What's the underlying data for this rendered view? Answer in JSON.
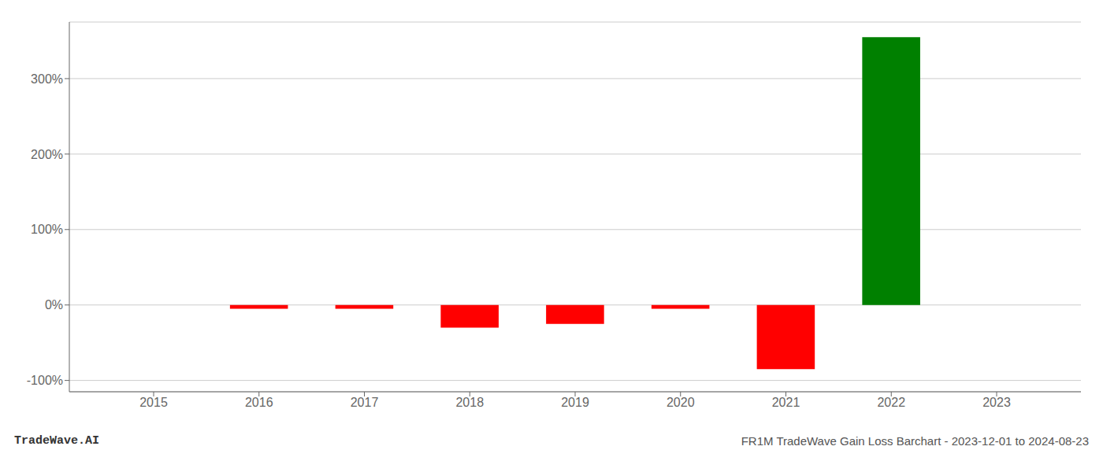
{
  "chart_data": {
    "type": "bar",
    "x": [
      2015,
      2016,
      2017,
      2018,
      2019,
      2020,
      2021,
      2022,
      2023
    ],
    "values": [
      0.0,
      -5.0,
      -5.0,
      -30.0,
      -25.0,
      -5.0,
      -85.0,
      355.0,
      0.0
    ],
    "colors": [
      "red",
      "red",
      "red",
      "red",
      "red",
      "red",
      "red",
      "green",
      "red"
    ],
    "xlim": [
      2014.2,
      2023.8
    ],
    "xticks": [
      2015,
      2016,
      2017,
      2018,
      2019,
      2020,
      2021,
      2022,
      2023
    ],
    "ylim": [
      -115,
      375
    ],
    "yticks": [
      {
        "value": -100,
        "label": "-100%"
      },
      {
        "value": 0,
        "label": "0%"
      },
      {
        "value": 100,
        "label": "100%"
      },
      {
        "value": 200,
        "label": "200%"
      },
      {
        "value": 300,
        "label": "300%"
      }
    ],
    "grid": true,
    "annotations": [
      "TradeWave.AI",
      "FR1M TradeWave Gain Loss Barchart - 2023-12-01 to 2024-08-23"
    ]
  }
}
